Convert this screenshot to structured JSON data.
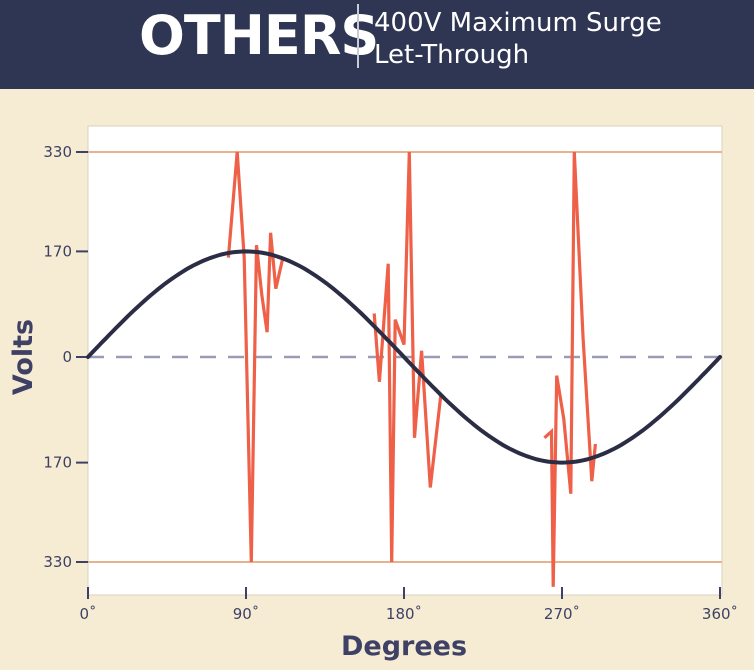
{
  "header": {
    "title": "OTHERS",
    "subtitle_line1": "400V Maximum Surge",
    "subtitle_line2": "Let-Through"
  },
  "colors": {
    "background": "#f5ecd3",
    "header_bg": "#2f3654",
    "plot_bg": "#ffffff",
    "axis_text": "#3e4165",
    "sine": "#2b2d45",
    "surge": "#ee6048",
    "limit_line": "#e8b28e",
    "zero_line": "#9a9cb5"
  },
  "chart_data": {
    "type": "line",
    "title": "",
    "xlabel": "Degrees",
    "ylabel": "Volts",
    "xlim": [
      0,
      360
    ],
    "ylim": [
      -360,
      360
    ],
    "x_ticks": [
      {
        "value": 0,
        "label": "0˚"
      },
      {
        "value": 90,
        "label": "90˚"
      },
      {
        "value": 180,
        "label": "180˚"
      },
      {
        "value": 270,
        "label": "270˚"
      },
      {
        "value": 360,
        "label": "360˚"
      }
    ],
    "y_ticks": [
      {
        "value": 330,
        "label": "330"
      },
      {
        "value": 170,
        "label": "170"
      },
      {
        "value": 0,
        "label": "0"
      },
      {
        "value": -170,
        "label": "170"
      },
      {
        "value": -330,
        "label": "330"
      }
    ],
    "reference_lines": [
      {
        "y": 330,
        "style": "solid"
      },
      {
        "y": -330,
        "style": "solid"
      },
      {
        "y": 0,
        "style": "dashed"
      }
    ],
    "series": [
      {
        "style": "sine",
        "amplitude": 170,
        "x_range": [
          0,
          360
        ]
      },
      {
        "style": "surge",
        "segments": [
          [
            [
              80,
              160
            ],
            [
              85,
              330
            ],
            [
              89,
              160
            ],
            [
              93,
              -330
            ],
            [
              96,
              180
            ],
            [
              99,
              100
            ],
            [
              102,
              40
            ],
            [
              104,
              200
            ],
            [
              107,
              110
            ],
            [
              111,
              160
            ]
          ],
          [
            [
              163,
              70
            ],
            [
              166,
              -40
            ],
            [
              171,
              150
            ],
            [
              173,
              -330
            ],
            [
              175,
              60
            ],
            [
              180,
              20
            ],
            [
              183,
              330
            ],
            [
              186,
              -130
            ],
            [
              190,
              10
            ],
            [
              195,
              -210
            ],
            [
              201,
              -60
            ]
          ],
          [
            [
              260,
              -130
            ],
            [
              264,
              -120
            ],
            [
              265,
              -370
            ],
            [
              267,
              -30
            ],
            [
              271,
              -100
            ],
            [
              275,
              -220
            ],
            [
              277,
              330
            ],
            [
              282,
              30
            ],
            [
              287,
              -200
            ],
            [
              289,
              -140
            ]
          ]
        ]
      }
    ]
  }
}
